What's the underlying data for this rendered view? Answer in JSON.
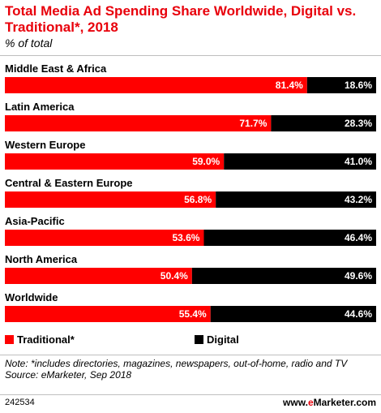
{
  "header": {
    "title": "Total Media Ad Spending Share Worldwide, Digital vs. Traditional*, 2018",
    "subtitle": "% of total"
  },
  "chart_data": {
    "type": "bar",
    "stacked": true,
    "orientation": "horizontal",
    "title": "Total Media Ad Spending Share Worldwide, Digital vs. Traditional*, 2018",
    "subtitle": "% of total",
    "categories": [
      "Middle East & Africa",
      "Latin America",
      "Western Europe",
      "Central & Eastern Europe",
      "Asia-Pacific",
      "North America",
      "Worldwide"
    ],
    "series": [
      {
        "name": "Traditional*",
        "color": "#ff0000",
        "values": [
          81.4,
          71.7,
          59.0,
          56.8,
          53.6,
          50.4,
          55.4
        ]
      },
      {
        "name": "Digital",
        "color": "#000000",
        "values": [
          18.6,
          28.3,
          41.0,
          43.2,
          46.4,
          49.6,
          44.6
        ]
      }
    ],
    "value_labels": {
      "Traditional*": [
        "81.4%",
        "71.7%",
        "59.0%",
        "56.8%",
        "53.6%",
        "50.4%",
        "55.4%"
      ],
      "Digital": [
        "18.6%",
        "28.3%",
        "41.0%",
        "43.2%",
        "46.4%",
        "49.6%",
        "44.6%"
      ]
    },
    "xlim": [
      0,
      100
    ],
    "grid": false,
    "legend_position": "bottom-left"
  },
  "legend": {
    "traditional": "Traditional*",
    "digital": "Digital"
  },
  "footer": {
    "note": "Note: *includes directories, magazines, newspapers, out-of-home, radio and TV",
    "source": "Source: eMarketer, Sep 2018",
    "chart_id": "242534",
    "brand_prefix": "www.",
    "brand_e": "e",
    "brand_suffix": "Marketer.com"
  }
}
